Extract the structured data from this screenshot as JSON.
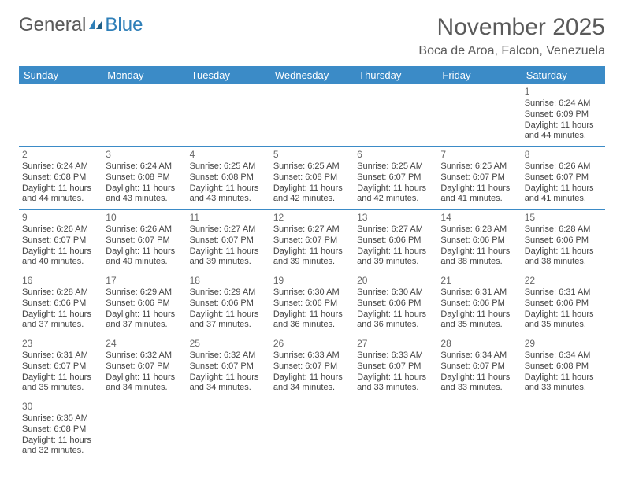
{
  "logo": {
    "text_gray": "General",
    "text_blue": "Blue"
  },
  "title": "November 2025",
  "location": "Boca de Aroa, Falcon, Venezuela",
  "colors": {
    "header_bg": "#3b8bc7",
    "header_text": "#ffffff",
    "row_border": "#3b8bc7",
    "title_color": "#5a5a5a",
    "body_text": "#444444",
    "background": "#ffffff"
  },
  "weekdays": [
    "Sunday",
    "Monday",
    "Tuesday",
    "Wednesday",
    "Thursday",
    "Friday",
    "Saturday"
  ],
  "weeks": [
    [
      null,
      null,
      null,
      null,
      null,
      null,
      {
        "day": "1",
        "sunrise": "Sunrise: 6:24 AM",
        "sunset": "Sunset: 6:09 PM",
        "daylight": "Daylight: 11 hours and 44 minutes."
      }
    ],
    [
      {
        "day": "2",
        "sunrise": "Sunrise: 6:24 AM",
        "sunset": "Sunset: 6:08 PM",
        "daylight": "Daylight: 11 hours and 44 minutes."
      },
      {
        "day": "3",
        "sunrise": "Sunrise: 6:24 AM",
        "sunset": "Sunset: 6:08 PM",
        "daylight": "Daylight: 11 hours and 43 minutes."
      },
      {
        "day": "4",
        "sunrise": "Sunrise: 6:25 AM",
        "sunset": "Sunset: 6:08 PM",
        "daylight": "Daylight: 11 hours and 43 minutes."
      },
      {
        "day": "5",
        "sunrise": "Sunrise: 6:25 AM",
        "sunset": "Sunset: 6:08 PM",
        "daylight": "Daylight: 11 hours and 42 minutes."
      },
      {
        "day": "6",
        "sunrise": "Sunrise: 6:25 AM",
        "sunset": "Sunset: 6:07 PM",
        "daylight": "Daylight: 11 hours and 42 minutes."
      },
      {
        "day": "7",
        "sunrise": "Sunrise: 6:25 AM",
        "sunset": "Sunset: 6:07 PM",
        "daylight": "Daylight: 11 hours and 41 minutes."
      },
      {
        "day": "8",
        "sunrise": "Sunrise: 6:26 AM",
        "sunset": "Sunset: 6:07 PM",
        "daylight": "Daylight: 11 hours and 41 minutes."
      }
    ],
    [
      {
        "day": "9",
        "sunrise": "Sunrise: 6:26 AM",
        "sunset": "Sunset: 6:07 PM",
        "daylight": "Daylight: 11 hours and 40 minutes."
      },
      {
        "day": "10",
        "sunrise": "Sunrise: 6:26 AM",
        "sunset": "Sunset: 6:07 PM",
        "daylight": "Daylight: 11 hours and 40 minutes."
      },
      {
        "day": "11",
        "sunrise": "Sunrise: 6:27 AM",
        "sunset": "Sunset: 6:07 PM",
        "daylight": "Daylight: 11 hours and 39 minutes."
      },
      {
        "day": "12",
        "sunrise": "Sunrise: 6:27 AM",
        "sunset": "Sunset: 6:07 PM",
        "daylight": "Daylight: 11 hours and 39 minutes."
      },
      {
        "day": "13",
        "sunrise": "Sunrise: 6:27 AM",
        "sunset": "Sunset: 6:06 PM",
        "daylight": "Daylight: 11 hours and 39 minutes."
      },
      {
        "day": "14",
        "sunrise": "Sunrise: 6:28 AM",
        "sunset": "Sunset: 6:06 PM",
        "daylight": "Daylight: 11 hours and 38 minutes."
      },
      {
        "day": "15",
        "sunrise": "Sunrise: 6:28 AM",
        "sunset": "Sunset: 6:06 PM",
        "daylight": "Daylight: 11 hours and 38 minutes."
      }
    ],
    [
      {
        "day": "16",
        "sunrise": "Sunrise: 6:28 AM",
        "sunset": "Sunset: 6:06 PM",
        "daylight": "Daylight: 11 hours and 37 minutes."
      },
      {
        "day": "17",
        "sunrise": "Sunrise: 6:29 AM",
        "sunset": "Sunset: 6:06 PM",
        "daylight": "Daylight: 11 hours and 37 minutes."
      },
      {
        "day": "18",
        "sunrise": "Sunrise: 6:29 AM",
        "sunset": "Sunset: 6:06 PM",
        "daylight": "Daylight: 11 hours and 37 minutes."
      },
      {
        "day": "19",
        "sunrise": "Sunrise: 6:30 AM",
        "sunset": "Sunset: 6:06 PM",
        "daylight": "Daylight: 11 hours and 36 minutes."
      },
      {
        "day": "20",
        "sunrise": "Sunrise: 6:30 AM",
        "sunset": "Sunset: 6:06 PM",
        "daylight": "Daylight: 11 hours and 36 minutes."
      },
      {
        "day": "21",
        "sunrise": "Sunrise: 6:31 AM",
        "sunset": "Sunset: 6:06 PM",
        "daylight": "Daylight: 11 hours and 35 minutes."
      },
      {
        "day": "22",
        "sunrise": "Sunrise: 6:31 AM",
        "sunset": "Sunset: 6:06 PM",
        "daylight": "Daylight: 11 hours and 35 minutes."
      }
    ],
    [
      {
        "day": "23",
        "sunrise": "Sunrise: 6:31 AM",
        "sunset": "Sunset: 6:07 PM",
        "daylight": "Daylight: 11 hours and 35 minutes."
      },
      {
        "day": "24",
        "sunrise": "Sunrise: 6:32 AM",
        "sunset": "Sunset: 6:07 PM",
        "daylight": "Daylight: 11 hours and 34 minutes."
      },
      {
        "day": "25",
        "sunrise": "Sunrise: 6:32 AM",
        "sunset": "Sunset: 6:07 PM",
        "daylight": "Daylight: 11 hours and 34 minutes."
      },
      {
        "day": "26",
        "sunrise": "Sunrise: 6:33 AM",
        "sunset": "Sunset: 6:07 PM",
        "daylight": "Daylight: 11 hours and 34 minutes."
      },
      {
        "day": "27",
        "sunrise": "Sunrise: 6:33 AM",
        "sunset": "Sunset: 6:07 PM",
        "daylight": "Daylight: 11 hours and 33 minutes."
      },
      {
        "day": "28",
        "sunrise": "Sunrise: 6:34 AM",
        "sunset": "Sunset: 6:07 PM",
        "daylight": "Daylight: 11 hours and 33 minutes."
      },
      {
        "day": "29",
        "sunrise": "Sunrise: 6:34 AM",
        "sunset": "Sunset: 6:08 PM",
        "daylight": "Daylight: 11 hours and 33 minutes."
      }
    ],
    [
      {
        "day": "30",
        "sunrise": "Sunrise: 6:35 AM",
        "sunset": "Sunset: 6:08 PM",
        "daylight": "Daylight: 11 hours and 32 minutes."
      },
      null,
      null,
      null,
      null,
      null,
      null
    ]
  ]
}
